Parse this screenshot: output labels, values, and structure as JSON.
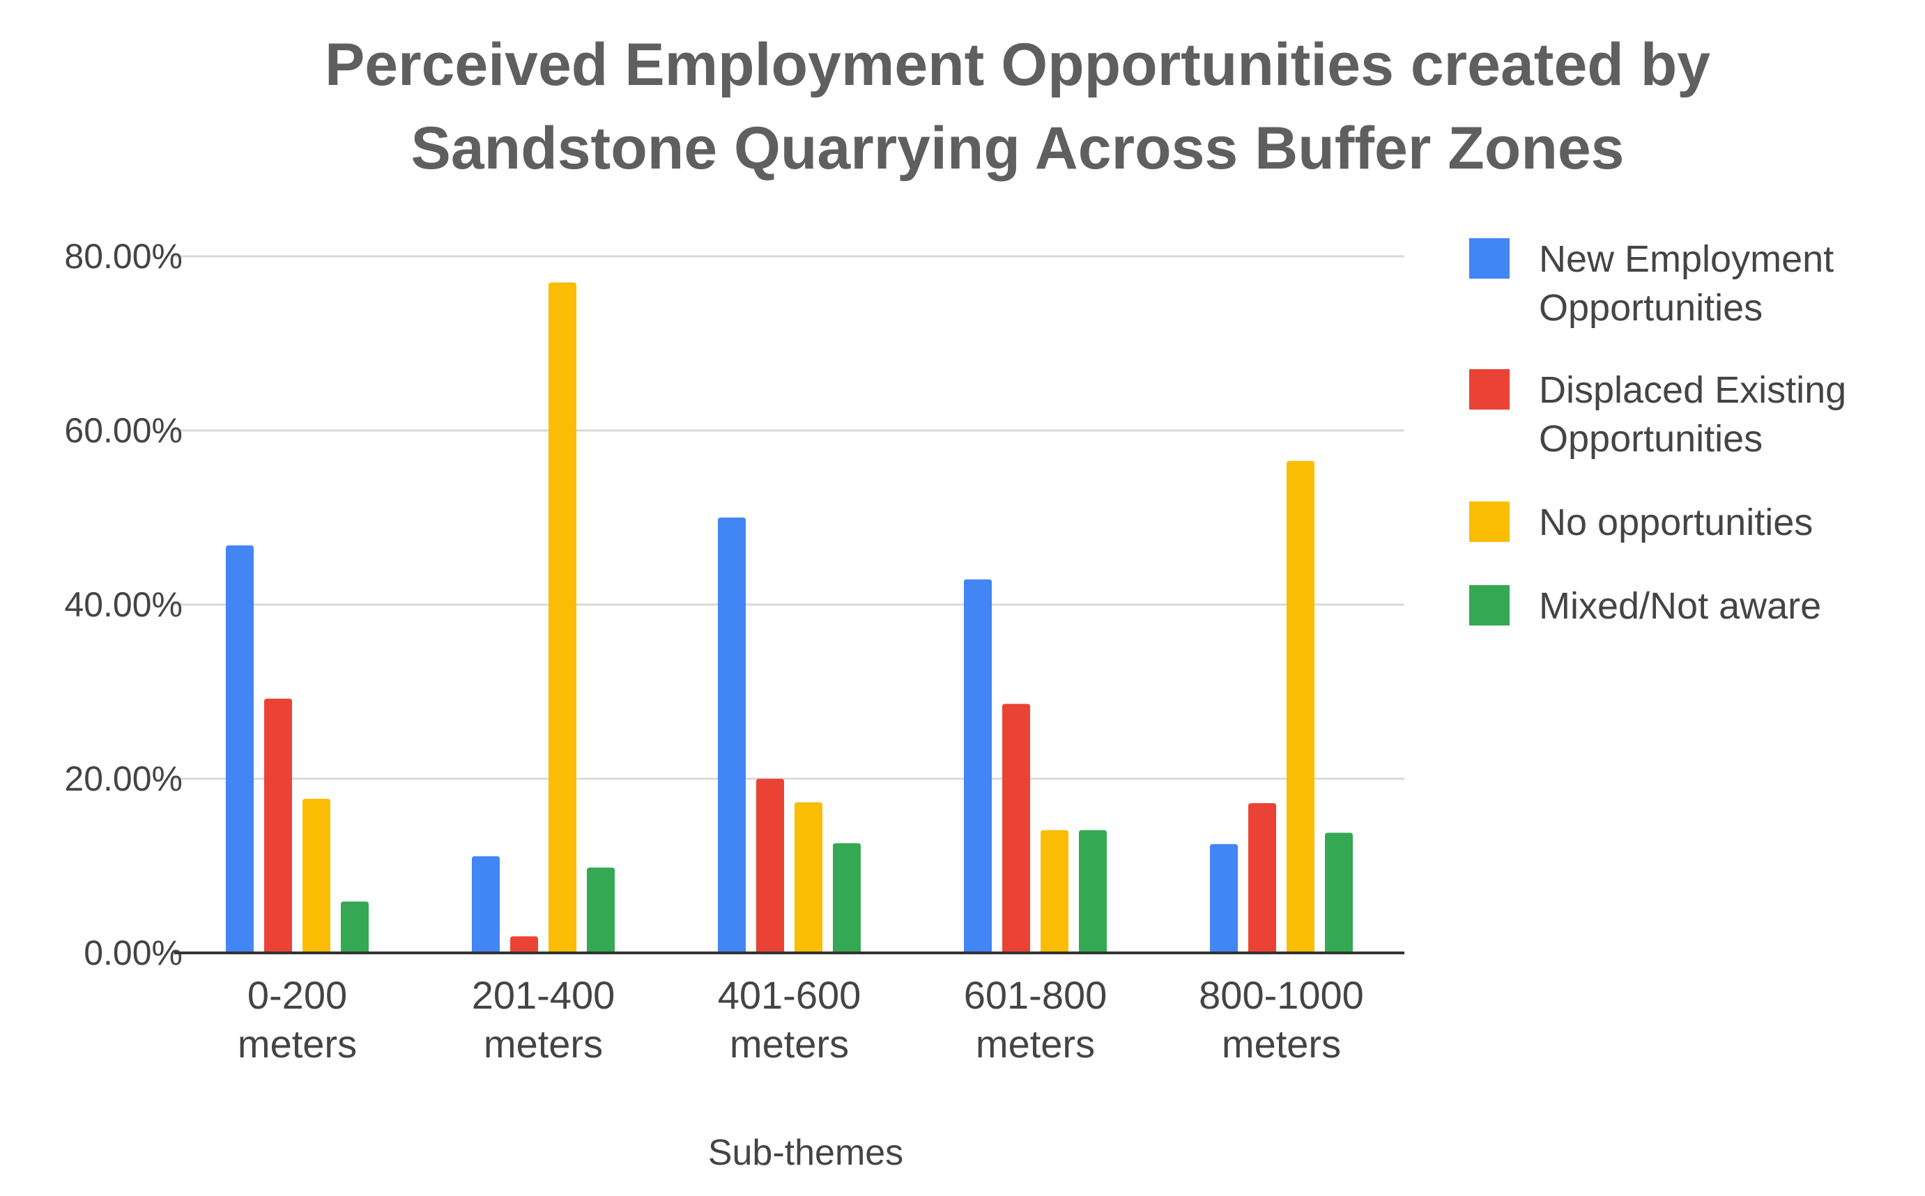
{
  "chart_data": {
    "type": "bar",
    "title_lines": [
      "Perceived Employment Opportunities created by",
      "Sandstone Quarrying Across Buffer Zones"
    ],
    "xlabel": "Sub-themes",
    "ylabel": "",
    "ylim": [
      0,
      80
    ],
    "yticks": [
      "0.00%",
      "20.00%",
      "40.00%",
      "60.00%",
      "80.00%"
    ],
    "grid": true,
    "legend_position": "right",
    "categories": [
      [
        "0-200",
        "meters"
      ],
      [
        "201-400",
        "meters"
      ],
      [
        "401-600",
        "meters"
      ],
      [
        "601-800",
        "meters"
      ],
      [
        "800-1000",
        "meters"
      ]
    ],
    "series": [
      {
        "name_lines": [
          "New Employment",
          "Opportunities"
        ],
        "color": "#4285f4",
        "values": [
          46.8,
          11.1,
          50.0,
          42.9,
          12.5
        ]
      },
      {
        "name_lines": [
          "Displaced Existing",
          "Opportunities"
        ],
        "color": "#ea4335",
        "values": [
          29.2,
          1.9,
          20.0,
          28.6,
          17.2
        ]
      },
      {
        "name_lines": [
          "No opportunities"
        ],
        "color": "#fbbc04",
        "values": [
          17.7,
          77.0,
          17.3,
          14.1,
          56.5
        ]
      },
      {
        "name_lines": [
          "Mixed/Not aware"
        ],
        "color": "#34a853",
        "values": [
          5.9,
          9.8,
          12.6,
          14.1,
          13.8
        ]
      }
    ]
  }
}
